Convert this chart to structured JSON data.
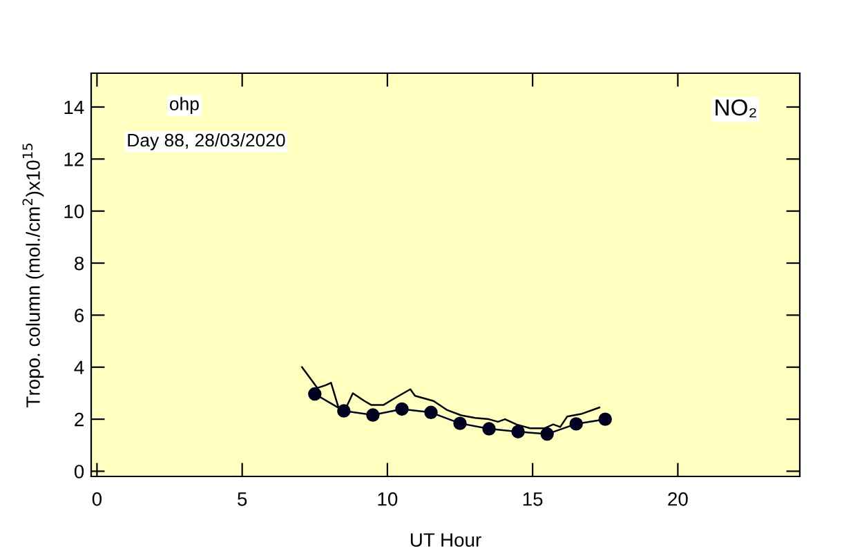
{
  "chart_data": {
    "type": "line",
    "xlabel": "UT Hour",
    "ylabel": "Tropo. column (mol./cm$^{2}$)x10$^{15}$",
    "annotations": [
      "ohp",
      "Day 88, 28/03/2020",
      "NO₂"
    ],
    "xlim": [
      -0.2,
      24.2
    ],
    "ylim": [
      -0.2,
      15.3
    ],
    "xticks": [
      0,
      5,
      10,
      15,
      20
    ],
    "yticks": [
      0,
      2,
      4,
      6,
      8,
      10,
      12,
      14
    ],
    "grid": false,
    "legend": false,
    "series": [
      {
        "color": "#000000",
        "marker": "none",
        "x": [
          7.06,
          7.59,
          7.86,
          8.06,
          8.33,
          8.54,
          8.81,
          9.21,
          9.44,
          9.87,
          10.24,
          10.79,
          10.95,
          11.59,
          12.06,
          12.54,
          13.02,
          13.49,
          13.81,
          14.05,
          14.44,
          14.92,
          15.4,
          15.71,
          15.95,
          16.19,
          16.67,
          17.3
        ],
        "values": [
          4.0,
          3.2,
          3.3,
          3.4,
          2.4,
          2.35,
          3.0,
          2.7,
          2.55,
          2.55,
          2.8,
          3.15,
          2.9,
          2.7,
          2.35,
          2.15,
          2.05,
          2.0,
          1.9,
          2.0,
          1.8,
          1.65,
          1.65,
          1.8,
          1.7,
          2.1,
          2.2,
          2.45
        ]
      },
      {
        "color": "#000020",
        "marker": "circle",
        "x": [
          7.5,
          8.5,
          9.5,
          10.5,
          11.5,
          12.5,
          13.5,
          14.5,
          15.5,
          16.5,
          17.5
        ],
        "values": [
          2.97,
          2.32,
          2.16,
          2.39,
          2.26,
          1.84,
          1.63,
          1.52,
          1.43,
          1.82,
          2.0
        ]
      }
    ]
  }
}
